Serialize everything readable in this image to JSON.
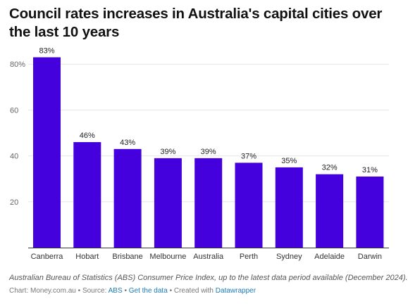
{
  "title": "Council rates increases in Australia's capital cities over the last 10 years",
  "chart_data": {
    "type": "bar",
    "categories": [
      "Canberra",
      "Hobart",
      "Brisbane",
      "Melbourne",
      "Australia",
      "Perth",
      "Sydney",
      "Adelaide",
      "Darwin"
    ],
    "values": [
      83,
      46,
      43,
      39,
      39,
      37,
      35,
      32,
      31
    ],
    "value_labels": [
      "83%",
      "46%",
      "43%",
      "39%",
      "39%",
      "37%",
      "35%",
      "32%",
      "31%"
    ],
    "yticks": [
      20,
      40,
      60,
      80
    ],
    "ytick_labels": [
      "20",
      "40",
      "60",
      "80%"
    ],
    "ylim": [
      0,
      85
    ],
    "grid": true,
    "bar_color": "#4400dd",
    "grid_color": "#e6e6e6",
    "baseline_color": "#333333"
  },
  "footer": {
    "note": "Australian Bureau of Statistics (ABS) Consumer Price Index, up to the latest data period available (December 2024).",
    "chart_prefix": "Chart: Money.com.au",
    "source_prefix": "Source:",
    "source_link": "ABS",
    "get_data": "Get the data",
    "created_prefix": "Created with",
    "created_link": "Datawrapper",
    "separator": "•",
    "link_color": "#1a7ab5"
  }
}
